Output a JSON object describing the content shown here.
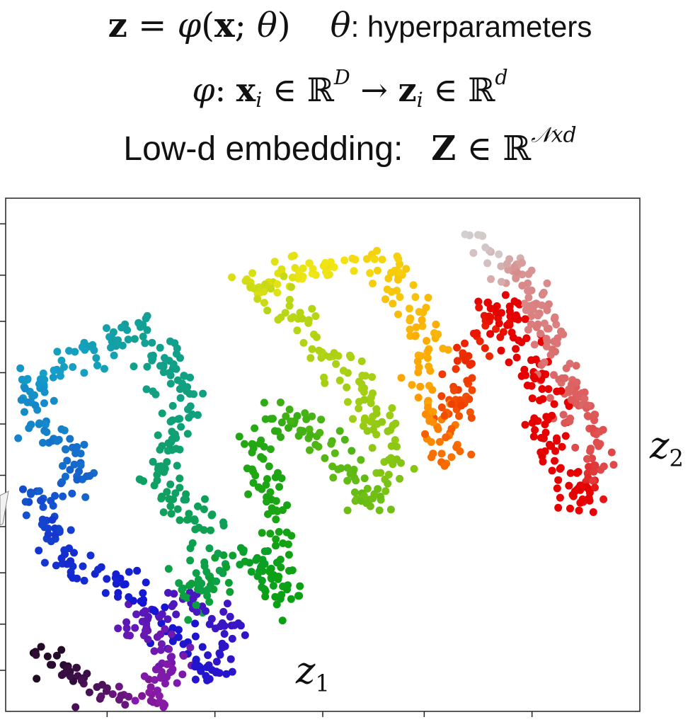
{
  "equations": {
    "line1": {
      "z_bold": "z",
      "equals": " = ",
      "phi": "φ",
      "open": "(",
      "x_bold": "x",
      "semi": "; ",
      "theta": "θ",
      "close": ")",
      "theta2": "θ",
      "hyper_label": ": hyperparameters"
    },
    "line2": {
      "phi": "φ",
      "colon": ": ",
      "x_bold": "x",
      "sub_i": "i",
      "in1": " ∈ ℝ",
      "sup_D": "D",
      "arrow": " → ",
      "z_bold": "z",
      "sub_i2": "i",
      "in2": " ∈ ℝ",
      "sup_d": "d"
    },
    "line3": {
      "text": "Low-d embedding:",
      "Z_bold": "Z",
      "in": " ∈ ℝ",
      "sup_Nxd": "𝒩xd"
    }
  },
  "chart_data": {
    "type": "scatter",
    "title": "",
    "xlabel": "z1",
    "ylabel": "z2",
    "xlim": [
      0,
      100
    ],
    "ylim": [
      0,
      100
    ],
    "xticks": [
      16,
      33,
      50,
      66,
      83
    ],
    "yticks": [
      8,
      17,
      27,
      36,
      46,
      56,
      66,
      76,
      85,
      95
    ],
    "show_tick_labels": false,
    "grid": false,
    "legend": "none",
    "colormap": "spectral (purple → blue → cyan → green → yellow → orange → red → grey)",
    "colors": {
      "purple_dark": "#1a0a1e",
      "purple": "#8a1aa6",
      "blue": "#1414d2",
      "cyan": "#15a0c8",
      "green": "#0aa014",
      "yellow": "#f0e614",
      "orange": "#ffa000",
      "red": "#e60000",
      "grey": "#d2d2d2"
    },
    "manifold_path": [
      [
        6,
        11,
        0.0
      ],
      [
        14,
        4,
        0.04
      ],
      [
        24,
        2,
        0.08
      ],
      [
        27,
        11,
        0.12
      ],
      [
        20,
        17,
        0.16
      ],
      [
        28,
        22,
        0.2
      ],
      [
        36,
        16,
        0.24
      ],
      [
        32,
        6,
        0.27
      ],
      [
        22,
        22,
        0.3
      ],
      [
        10,
        30,
        0.33
      ],
      [
        4,
        40,
        0.36
      ],
      [
        12,
        46,
        0.39
      ],
      [
        5,
        56,
        0.42
      ],
      [
        4,
        64,
        0.44
      ],
      [
        14,
        70,
        0.47
      ],
      [
        22,
        75,
        0.5
      ],
      [
        28,
        61,
        0.52
      ],
      [
        24,
        46,
        0.54
      ],
      [
        32,
        36,
        0.56
      ],
      [
        30,
        20,
        0.58
      ],
      [
        38,
        31,
        0.6
      ],
      [
        44,
        22,
        0.62
      ],
      [
        40,
        52,
        0.64
      ],
      [
        46,
        58,
        0.66
      ],
      [
        52,
        50,
        0.68
      ],
      [
        58,
        40,
        0.7
      ],
      [
        62,
        50,
        0.72
      ],
      [
        56,
        62,
        0.74
      ],
      [
        44,
        80,
        0.76
      ],
      [
        38,
        84,
        0.78
      ],
      [
        50,
        86,
        0.8
      ],
      [
        60,
        88,
        0.82
      ],
      [
        66,
        76,
        0.84
      ],
      [
        66,
        62,
        0.86
      ],
      [
        70,
        50,
        0.88
      ],
      [
        72,
        66,
        0.9
      ],
      [
        78,
        80,
        0.92
      ],
      [
        84,
        64,
        0.94
      ],
      [
        86,
        50,
        0.96
      ],
      [
        90,
        40,
        0.97
      ],
      [
        94,
        48,
        0.98
      ],
      [
        82,
        84,
        0.99
      ],
      [
        74,
        92,
        1.0
      ]
    ],
    "n_points": 1300
  }
}
